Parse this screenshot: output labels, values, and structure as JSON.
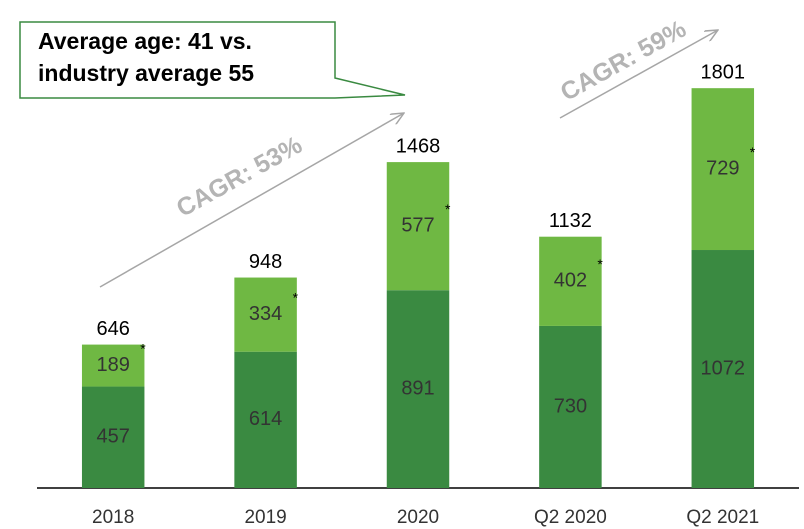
{
  "chart_data": {
    "type": "stacked_bar",
    "categories": [
      "2018",
      "2019",
      "2020",
      "Q2 2020",
      "Q2 2021"
    ],
    "series": [
      {
        "color": "#3a8a41",
        "values": [
          457,
          614,
          891,
          730,
          1072
        ]
      },
      {
        "color": "#6fb843",
        "values": [
          189,
          334,
          577,
          402,
          729
        ]
      }
    ],
    "totals": [
      646,
      948,
      1468,
      1132,
      1801
    ],
    "footnote_marker": "*",
    "ylim": [
      0,
      2000
    ],
    "annotation": {
      "lines": [
        "Average age: 41 vs.",
        "industry average 55"
      ]
    },
    "cagr": [
      "CAGR: 53%",
      "CAGR: 59%"
    ]
  }
}
